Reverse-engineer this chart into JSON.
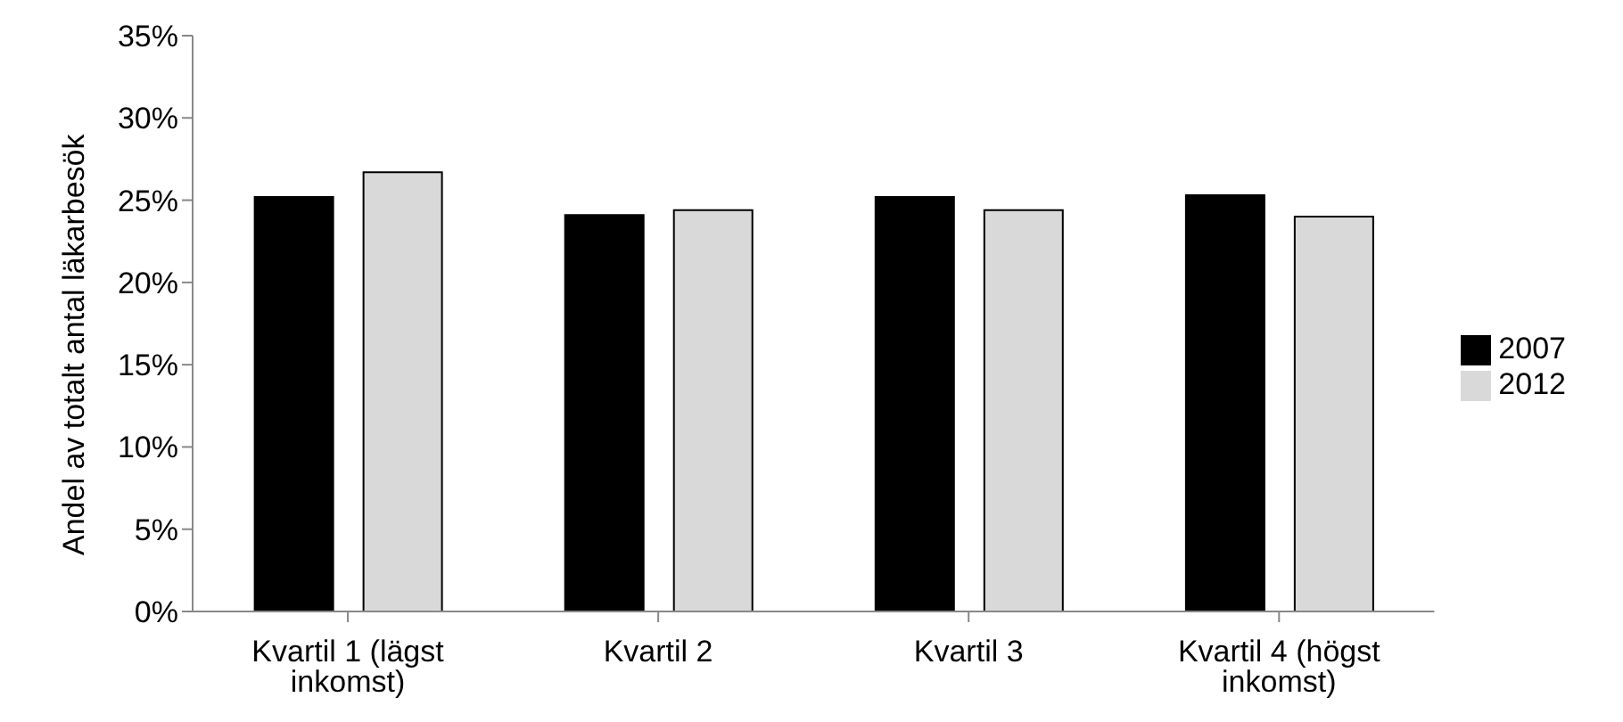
{
  "chart_data": {
    "type": "bar",
    "ylabel": "Andel av totalt antal läkarbesök",
    "categories": [
      "Kvartil 1 (lägst inkomst)",
      "Kvartil 2",
      "Kvartil 3",
      "Kvartil 4 (högst inkomst)"
    ],
    "series": [
      {
        "name": "2007",
        "color": "#000000",
        "values": [
          25.2,
          24.1,
          25.2,
          25.3
        ]
      },
      {
        "name": "2012",
        "color": "#d9d9d9",
        "values": [
          26.7,
          24.4,
          24.4,
          24.0
        ]
      }
    ],
    "ylim": [
      0,
      35
    ],
    "yticks": [
      {
        "value": 0,
        "label": "0%"
      },
      {
        "value": 5,
        "label": "5%"
      },
      {
        "value": 10,
        "label": "10%"
      },
      {
        "value": 15,
        "label": "15%"
      },
      {
        "value": 20,
        "label": "20%"
      },
      {
        "value": 25,
        "label": "25%"
      },
      {
        "value": 30,
        "label": "30%"
      },
      {
        "value": 35,
        "label": "35%"
      }
    ],
    "grid": false,
    "legend": "right"
  }
}
